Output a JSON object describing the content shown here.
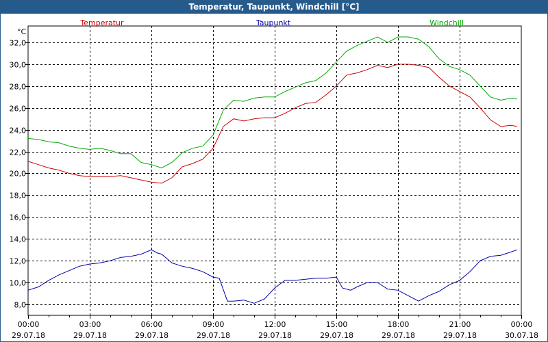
{
  "window": {
    "title": "Temperatur, Taupunkt, Windchill [°C]"
  },
  "chart_data": {
    "type": "line",
    "title": "Temperatur, Taupunkt, Windchill [°C]",
    "ylabel": "°C",
    "ylim": [
      7.0,
      33.5
    ],
    "xlim": [
      0,
      24
    ],
    "grid": true,
    "legend_placement": "top",
    "y_ticks": [
      "8,0",
      "10,0",
      "12,0",
      "14,0",
      "16,0",
      "18,0",
      "20,0",
      "22,0",
      "24,0",
      "26,0",
      "28,0",
      "30,0",
      "32,0"
    ],
    "y_tick_values": [
      8,
      10,
      12,
      14,
      16,
      18,
      20,
      22,
      24,
      26,
      28,
      30,
      32
    ],
    "x_ticks": [
      {
        "value": 0,
        "time": "00:00",
        "date": "29.07.18"
      },
      {
        "value": 3,
        "time": "03:00",
        "date": "29.07.18"
      },
      {
        "value": 6,
        "time": "06:00",
        "date": "29.07.18"
      },
      {
        "value": 9,
        "time": "09:00",
        "date": "29.07.18"
      },
      {
        "value": 12,
        "time": "12:00",
        "date": "29.07.18"
      },
      {
        "value": 15,
        "time": "15:00",
        "date": "29.07.18"
      },
      {
        "value": 18,
        "time": "18:00",
        "date": "29.07.18"
      },
      {
        "value": 21,
        "time": "21:00",
        "date": "29.07.18"
      },
      {
        "value": 24,
        "time": "00:00",
        "date": "30.07.18"
      }
    ],
    "series": [
      {
        "name": "Temperatur",
        "color": "#cc0000",
        "x": [
          0,
          0.5,
          1,
          1.5,
          2,
          2.5,
          3,
          3.5,
          4,
          4.5,
          5,
          5.5,
          6,
          6.5,
          7,
          7.5,
          8,
          8.5,
          9,
          9.5,
          10,
          10.5,
          11,
          11.5,
          12,
          12.5,
          13,
          13.5,
          14,
          14.5,
          15,
          15.5,
          16,
          16.5,
          17,
          17.5,
          18,
          18.5,
          19,
          19.5,
          20,
          20.5,
          21,
          21.5,
          22,
          22.5,
          23,
          23.5,
          23.8
        ],
        "values": [
          21.1,
          20.8,
          20.5,
          20.3,
          20.0,
          19.8,
          19.7,
          19.7,
          19.7,
          19.8,
          19.6,
          19.4,
          19.2,
          19.1,
          19.6,
          20.6,
          20.9,
          21.3,
          22.3,
          24.3,
          25.0,
          24.8,
          25.0,
          25.1,
          25.1,
          25.5,
          26.0,
          26.4,
          26.5,
          27.2,
          28.0,
          29.0,
          29.2,
          29.5,
          29.9,
          29.7,
          30.0,
          30.0,
          29.9,
          29.7,
          28.8,
          28.0,
          27.5,
          27.0,
          26.0,
          24.9,
          24.3,
          24.4,
          24.3
        ]
      },
      {
        "name": "Taupunkt",
        "color": "#0000aa",
        "x": [
          0,
          0.5,
          1,
          1.5,
          2,
          2.5,
          3,
          3.5,
          4,
          4.5,
          5,
          5.5,
          6,
          6.3,
          6.5,
          7,
          7.5,
          8,
          8.5,
          9,
          9.3,
          9.7,
          10,
          10.5,
          11,
          11.5,
          12,
          12.5,
          13,
          13.5,
          14,
          14.5,
          15,
          15.3,
          15.7,
          16,
          16.5,
          17,
          17.5,
          18,
          18.5,
          19,
          19.5,
          20,
          20.5,
          21,
          21.5,
          22,
          22.5,
          23,
          23.5,
          23.8
        ],
        "values": [
          9.3,
          9.6,
          10.2,
          10.7,
          11.1,
          11.5,
          11.7,
          11.8,
          12.0,
          12.3,
          12.4,
          12.6,
          13.0,
          12.7,
          12.6,
          11.8,
          11.5,
          11.3,
          11.0,
          10.5,
          10.4,
          8.3,
          8.3,
          8.4,
          8.1,
          8.5,
          9.5,
          10.2,
          10.2,
          10.3,
          10.4,
          10.4,
          10.5,
          9.5,
          9.3,
          9.6,
          10.0,
          10.0,
          9.4,
          9.3,
          8.8,
          8.3,
          8.8,
          9.2,
          9.8,
          10.2,
          11.0,
          12.0,
          12.4,
          12.5,
          12.8,
          13.0
        ]
      },
      {
        "name": "Windchill",
        "color": "#00aa00",
        "x": [
          0,
          0.5,
          1,
          1.5,
          2,
          2.5,
          3,
          3.5,
          4,
          4.5,
          5,
          5.5,
          6,
          6.5,
          7,
          7.5,
          8,
          8.5,
          9,
          9.5,
          10,
          10.5,
          11,
          11.5,
          12,
          12.5,
          13,
          13.5,
          14,
          14.5,
          15,
          15.5,
          16,
          16.5,
          17,
          17.5,
          18,
          18.5,
          19,
          19.5,
          20,
          20.5,
          21,
          21.5,
          22,
          22.5,
          23,
          23.5,
          23.8
        ],
        "values": [
          23.2,
          23.1,
          22.9,
          22.8,
          22.5,
          22.3,
          22.2,
          22.3,
          22.1,
          21.8,
          21.8,
          21.0,
          20.8,
          20.5,
          21.0,
          21.9,
          22.3,
          22.5,
          23.5,
          25.8,
          26.7,
          26.6,
          26.9,
          27.0,
          27.0,
          27.5,
          27.9,
          28.3,
          28.5,
          29.2,
          30.2,
          31.2,
          31.7,
          32.1,
          32.5,
          32.0,
          32.5,
          32.5,
          32.3,
          31.6,
          30.5,
          29.8,
          29.5,
          29.0,
          28.0,
          27.0,
          26.7,
          26.9,
          26.8
        ]
      }
    ]
  }
}
